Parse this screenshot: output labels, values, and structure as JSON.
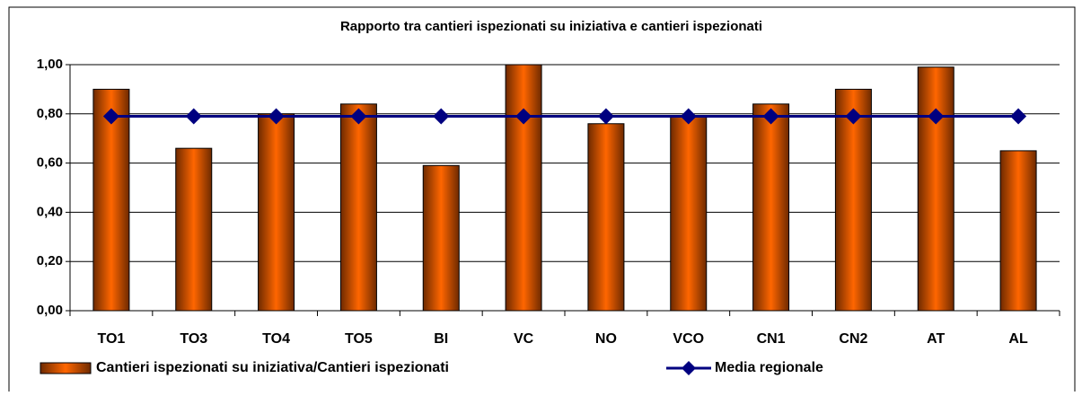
{
  "chart_data": {
    "type": "bar_line",
    "title": "Rapporto tra cantieri ispezionati su iniziativa e cantieri ispezionati",
    "categories": [
      "TO1",
      "TO3",
      "TO4",
      "TO5",
      "BI",
      "VC",
      "NO",
      "VCO",
      "CN1",
      "CN2",
      "AT",
      "AL"
    ],
    "series": [
      {
        "name": "Cantieri ispezionati su iniziativa/Cantieri ispezionati",
        "type": "bar",
        "color": "#ff6600",
        "values": [
          0.9,
          0.66,
          0.8,
          0.84,
          0.59,
          1.0,
          0.76,
          0.79,
          0.84,
          0.9,
          0.99,
          0.65
        ]
      },
      {
        "name": "Media regionale",
        "type": "line",
        "color": "#000080",
        "values": [
          0.79,
          0.79,
          0.79,
          0.79,
          0.79,
          0.79,
          0.79,
          0.79,
          0.79,
          0.79,
          0.79,
          0.79
        ]
      }
    ],
    "ylim": [
      0,
      1
    ],
    "yticks": [
      {
        "value": 0,
        "label": "0,00"
      },
      {
        "value": 0.2,
        "label": "0,20"
      },
      {
        "value": 0.4,
        "label": "0,40"
      },
      {
        "value": 0.6,
        "label": "0,60"
      },
      {
        "value": 0.8,
        "label": "0,80"
      },
      {
        "value": 1,
        "label": "1,00"
      }
    ],
    "grid": true,
    "legend": "bottom"
  }
}
